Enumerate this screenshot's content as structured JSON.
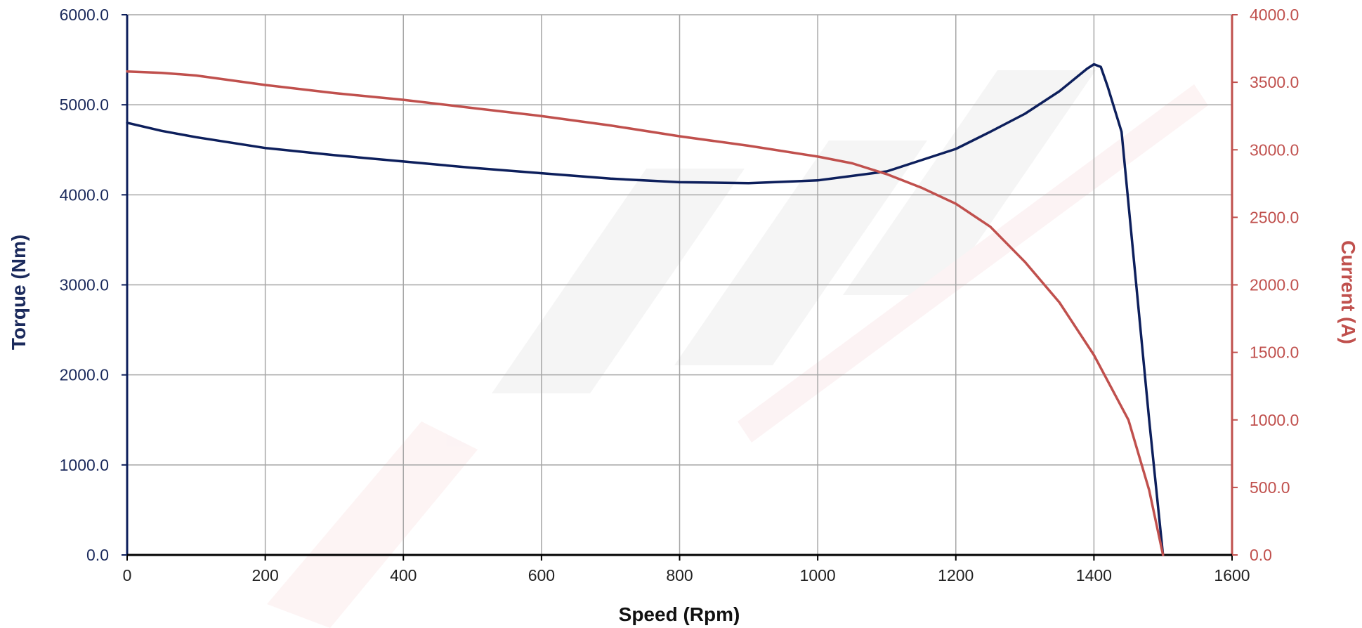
{
  "chart_data": {
    "type": "line",
    "title": "",
    "xlabel": "Speed (Rpm)",
    "ylabel_left": "Torque (Nm)",
    "ylabel_right": "Current (A)",
    "xlim": [
      0,
      1600
    ],
    "ylim_left": [
      0,
      6000
    ],
    "ylim_right": [
      0,
      4000
    ],
    "x_ticks": [
      "0",
      "200",
      "400",
      "600",
      "800",
      "1000",
      "1200",
      "1400",
      "1600"
    ],
    "y_ticks_left": [
      "0.0",
      "1000.0",
      "2000.0",
      "3000.0",
      "4000.0",
      "5000.0",
      "6000.0"
    ],
    "y_ticks_right": [
      "0.0",
      "500.0",
      "1000.0",
      "1500.0",
      "2000.0",
      "2500.0",
      "3000.0",
      "3500.0",
      "4000.0"
    ],
    "grid": true,
    "colors": {
      "torque": "#0d1f5c",
      "current": "#c0504d",
      "grid": "#a6a6a6",
      "axis": "#000000"
    },
    "series": [
      {
        "axis": "left",
        "x": [
          0,
          50,
          100,
          200,
          300,
          400,
          500,
          600,
          700,
          800,
          900,
          1000,
          1100,
          1200,
          1250,
          1300,
          1350,
          1390,
          1400,
          1410,
          1420,
          1440,
          1460,
          1480,
          1500
        ],
        "values": [
          4800,
          4710,
          4640,
          4520,
          4440,
          4370,
          4300,
          4240,
          4180,
          4140,
          4130,
          4160,
          4260,
          4510,
          4700,
          4900,
          5150,
          5400,
          5450,
          5420,
          5200,
          4700,
          3100,
          1500,
          0
        ]
      },
      {
        "axis": "right",
        "x": [
          0,
          50,
          100,
          200,
          300,
          400,
          500,
          600,
          700,
          800,
          900,
          1000,
          1050,
          1100,
          1150,
          1200,
          1250,
          1300,
          1350,
          1400,
          1450,
          1480,
          1500
        ],
        "values": [
          3580,
          3570,
          3550,
          3480,
          3420,
          3370,
          3310,
          3250,
          3180,
          3100,
          3030,
          2950,
          2900,
          2820,
          2720,
          2600,
          2430,
          2170,
          1870,
          1480,
          1000,
          480,
          0
        ]
      }
    ]
  }
}
